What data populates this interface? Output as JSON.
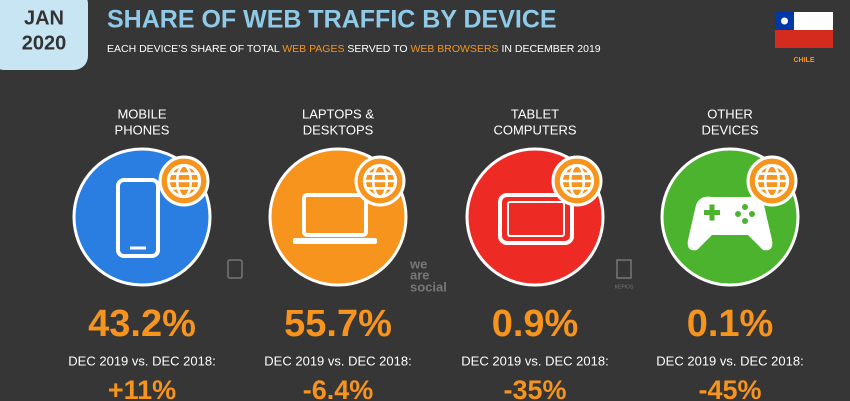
{
  "header": {
    "badge": [
      "JAN",
      "2020"
    ],
    "title": "SHARE OF WEB TRAFFIC BY DEVICE",
    "subtitle": [
      "EACH DEVICE’S SHARE OF TOTAL ",
      "WEB PAGES",
      " SERVED TO ",
      "WEB BROWSERS",
      " IN DECEMBER 2019"
    ],
    "country": "CHILE"
  },
  "logos": {
    "we_are_social": [
      "we",
      "are",
      "social"
    ],
    "kepios": "KEPIOS"
  },
  "devices": [
    {
      "label": [
        "MOBILE",
        "PHONES"
      ],
      "value": "43.2%",
      "change_label": "DEC 2019 vs. DEC 2018:",
      "change": "+11%"
    },
    {
      "label": [
        "LAPTOPS &",
        "DESKTOPS"
      ],
      "value": "55.7%",
      "change_label": "DEC 2019 vs. DEC 2018:",
      "change": "-6.4%"
    },
    {
      "label": [
        "TABLET",
        "COMPUTERS"
      ],
      "value": "0.9%",
      "change_label": "DEC 2019 vs. DEC 2018:",
      "change": "-35%"
    },
    {
      "label": [
        "OTHER",
        "DEVICES"
      ],
      "value": "0.1%",
      "change_label": "DEC 2019 vs. DEC 2018:",
      "change": "-45%"
    }
  ]
}
